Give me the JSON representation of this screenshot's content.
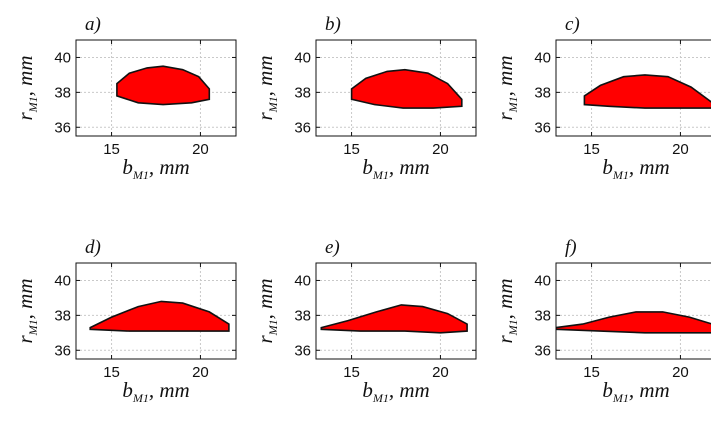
{
  "colors": {
    "region_fill": "#ff0000",
    "region_edge": "#111111"
  },
  "chart_data": [
    {
      "type": "area",
      "panel_label": "a)",
      "xlabel": {
        "main": "b",
        "sub": "M1",
        "unit": ", mm"
      },
      "ylabel": {
        "main": "r",
        "sub": "M1",
        "unit": ", mm"
      },
      "xlim": [
        13,
        22
      ],
      "ylim": [
        35.5,
        41
      ],
      "xticks": [
        "15",
        "20"
      ],
      "yticks": [
        "36",
        "38",
        "40"
      ],
      "grid": true,
      "series": [
        {
          "upper": [
            [
              15.3,
              38.5
            ],
            [
              16,
              39.1
            ],
            [
              17,
              39.4
            ],
            [
              17.9,
              39.5
            ],
            [
              19,
              39.3
            ],
            [
              19.9,
              38.9
            ],
            [
              20.5,
              38.2
            ]
          ],
          "lower": [
            [
              15.3,
              37.8
            ],
            [
              16.5,
              37.4
            ],
            [
              17.9,
              37.3
            ],
            [
              19.5,
              37.4
            ],
            [
              20.5,
              37.6
            ]
          ]
        }
      ]
    },
    {
      "type": "area",
      "panel_label": "b)",
      "xlabel": {
        "main": "b",
        "sub": "M1",
        "unit": ", mm"
      },
      "ylabel": {
        "main": "r",
        "sub": "M1",
        "unit": ", mm"
      },
      "xlim": [
        13,
        22
      ],
      "ylim": [
        35.5,
        41
      ],
      "xticks": [
        "15",
        "20"
      ],
      "yticks": [
        "36",
        "38",
        "40"
      ],
      "grid": true,
      "series": [
        {
          "upper": [
            [
              15,
              38.2
            ],
            [
              15.8,
              38.8
            ],
            [
              17,
              39.2
            ],
            [
              18,
              39.3
            ],
            [
              19.3,
              39.1
            ],
            [
              20.4,
              38.5
            ],
            [
              21.2,
              37.6
            ]
          ],
          "lower": [
            [
              15,
              37.6
            ],
            [
              16.3,
              37.3
            ],
            [
              17.9,
              37.1
            ],
            [
              19.6,
              37.1
            ],
            [
              21.2,
              37.2
            ]
          ]
        }
      ]
    },
    {
      "type": "area",
      "panel_label": "c)",
      "xlabel": {
        "main": "b",
        "sub": "M1",
        "unit": ", mm"
      },
      "ylabel": {
        "main": "r",
        "sub": "M1",
        "unit": ", mm"
      },
      "xlim": [
        13,
        22
      ],
      "ylim": [
        35.5,
        41
      ],
      "xticks": [
        "15",
        "20"
      ],
      "yticks": [
        "36",
        "38",
        "40"
      ],
      "grid": true,
      "series": [
        {
          "upper": [
            [
              14.6,
              37.8
            ],
            [
              15.5,
              38.4
            ],
            [
              16.8,
              38.9
            ],
            [
              18,
              39
            ],
            [
              19.3,
              38.9
            ],
            [
              20.6,
              38.3
            ],
            [
              21.8,
              37.4
            ]
          ],
          "lower": [
            [
              14.6,
              37.3
            ],
            [
              16,
              37.2
            ],
            [
              18,
              37.1
            ],
            [
              20,
              37.1
            ],
            [
              21.8,
              37.1
            ]
          ]
        }
      ]
    },
    {
      "type": "area",
      "panel_label": "d)",
      "xlabel": {
        "main": "b",
        "sub": "M1",
        "unit": ", mm"
      },
      "ylabel": {
        "main": "r",
        "sub": "M1",
        "unit": ", mm"
      },
      "xlim": [
        13,
        22
      ],
      "ylim": [
        35.5,
        41
      ],
      "xticks": [
        "15",
        "20"
      ],
      "yticks": [
        "36",
        "38",
        "40"
      ],
      "grid": true,
      "series": [
        {
          "upper": [
            [
              13.8,
              37.3
            ],
            [
              15,
              37.9
            ],
            [
              16.5,
              38.5
            ],
            [
              17.8,
              38.8
            ],
            [
              19,
              38.7
            ],
            [
              20.5,
              38.2
            ],
            [
              21.6,
              37.5
            ]
          ],
          "lower": [
            [
              13.8,
              37.2
            ],
            [
              16,
              37.1
            ],
            [
              18,
              37.1
            ],
            [
              20,
              37.1
            ],
            [
              21.6,
              37.1
            ]
          ]
        }
      ]
    },
    {
      "type": "area",
      "panel_label": "e)",
      "xlabel": {
        "main": "b",
        "sub": "M1",
        "unit": ", mm"
      },
      "ylabel": {
        "main": "r",
        "sub": "M1",
        "unit": ", mm"
      },
      "xlim": [
        13,
        22
      ],
      "ylim": [
        35.5,
        41
      ],
      "xticks": [
        "15",
        "20"
      ],
      "yticks": [
        "36",
        "38",
        "40"
      ],
      "grid": true,
      "series": [
        {
          "upper": [
            [
              13.3,
              37.3
            ],
            [
              14.8,
              37.7
            ],
            [
              16.4,
              38.2
            ],
            [
              17.8,
              38.6
            ],
            [
              19,
              38.5
            ],
            [
              20.4,
              38.1
            ],
            [
              21.5,
              37.5
            ]
          ],
          "lower": [
            [
              13.3,
              37.2
            ],
            [
              15.5,
              37.1
            ],
            [
              18,
              37.1
            ],
            [
              20,
              37
            ],
            [
              21.5,
              37.1
            ]
          ]
        }
      ]
    },
    {
      "type": "area",
      "panel_label": "f)",
      "xlabel": {
        "main": "b",
        "sub": "M1",
        "unit": ", mm"
      },
      "ylabel": {
        "main": "r",
        "sub": "M1",
        "unit": ", mm"
      },
      "xlim": [
        13,
        22
      ],
      "ylim": [
        35.5,
        41
      ],
      "xticks": [
        "15",
        "20"
      ],
      "yticks": [
        "36",
        "38",
        "40"
      ],
      "grid": true,
      "series": [
        {
          "upper": [
            [
              13,
              37.3
            ],
            [
              14.5,
              37.5
            ],
            [
              16,
              37.9
            ],
            [
              17.5,
              38.2
            ],
            [
              19,
              38.2
            ],
            [
              20.5,
              37.9
            ],
            [
              21.8,
              37.5
            ]
          ],
          "lower": [
            [
              13,
              37.2
            ],
            [
              15.5,
              37.1
            ],
            [
              18,
              37
            ],
            [
              20,
              37
            ],
            [
              21.8,
              37
            ]
          ]
        }
      ]
    }
  ]
}
